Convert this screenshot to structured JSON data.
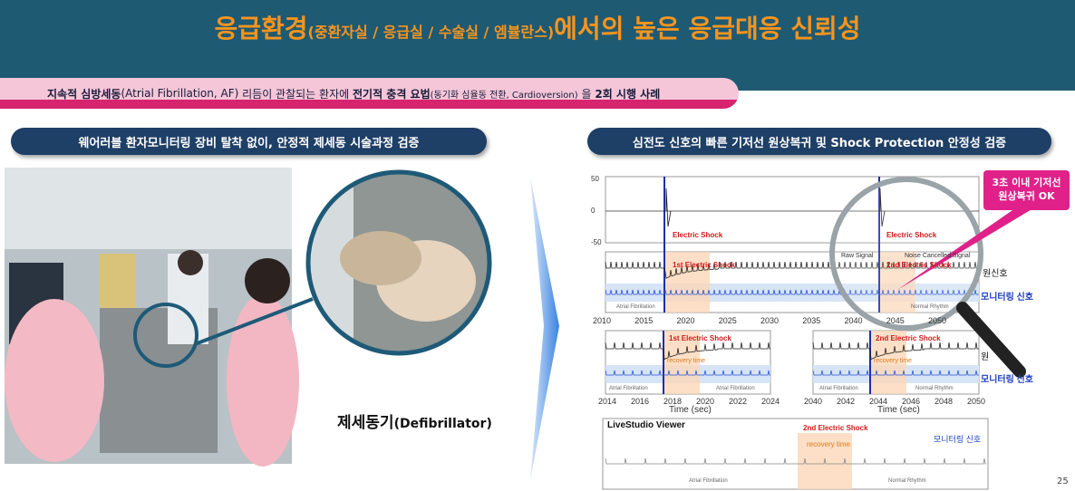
{
  "header": {
    "title_main": "응급환경",
    "title_paren": "(중환자실 / 응급실 / 수술실 / 엠뷸란스)",
    "title_tail": "에서의 높은 응급대응 신뢰성"
  },
  "banner": {
    "part1": "지속적 심방세동",
    "part2": "(Atrial Fibrillation, AF)",
    "part3": " 리듬이 관찰되는 환자에 ",
    "part4": "전기적 충격 요법",
    "part5": "(동기화 심율동 전환, Cardioversion)",
    "part6": " 을 ",
    "part7": "2회 시행 사례"
  },
  "left": {
    "heading": "웨어러블 환자모니터링 장비 탈착 없이,  안정적 제세동 시술과정 검증",
    "caption_main": "제세동기",
    "caption_paren": "(Defibrillator)"
  },
  "right": {
    "heading": "심전도 신호의 빠른 기저선 원상복귀 및  Shock Protection 안정성 검증",
    "callout": {
      "line1": "3초 이내 기저선",
      "line2": "원상복귀 OK"
    },
    "top_plot": {
      "yticks": [
        "50",
        "0",
        "-50"
      ],
      "shock1": "Electric Shock",
      "shock2": "Electric Shock"
    },
    "mid_plot": {
      "shock1": "1st Electric Shock",
      "shock2": "2nd Electric Shock",
      "legend_raw": "Raw Signal",
      "legend_nc": "Noise Cancelled Signal",
      "raw_label": "원신호",
      "mon_label": "모니터링 신호",
      "af": "Atrial Fibrillation",
      "nr": "Normal Rhythm",
      "xticks": [
        "2010",
        "2015",
        "2020",
        "2025",
        "2030",
        "2035",
        "2040",
        "2045",
        "2050"
      ]
    },
    "low_left": {
      "shock": "1st Electric Shock",
      "recovery": "recovery time",
      "af1": "Atrial Fibrillation",
      "af2": "Atrial Fibrillation",
      "xlabel": "Time (sec)",
      "xticks": [
        "2014",
        "2016",
        "2018",
        "2020",
        "2022",
        "2024"
      ]
    },
    "low_right": {
      "shock": "2nd Electric Shock",
      "recovery": "recovery time",
      "af": "Atrial Fibrillation",
      "nr": "Normal Rhythm",
      "raw_label": "원",
      "mon_label": "모니터링 신호",
      "xlabel": "Time (sec)",
      "xticks": [
        "2040",
        "2042",
        "2044",
        "2046",
        "2048",
        "2050"
      ]
    },
    "viewer": {
      "title": "LiveStudio Viewer",
      "shock": "2nd Electric Shock",
      "recovery": "recovery time",
      "mon_label": "모니터링 신호",
      "af": "Atrial Fibrillation",
      "nr": "Normal Rhythm"
    }
  },
  "page_number": "25"
}
